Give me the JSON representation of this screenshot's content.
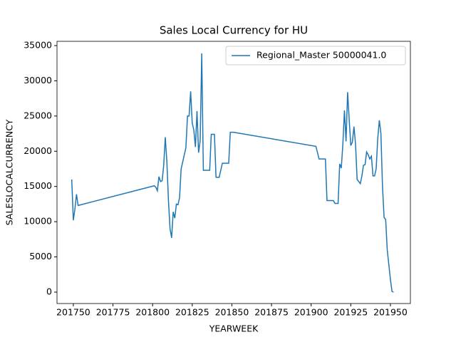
{
  "chart_data": {
    "type": "line",
    "title": "Sales Local Currency for HU",
    "x_label": "YEARWEEK",
    "y_label": "SALESLOCALCURRENCY",
    "x": [
      201749,
      201750,
      201751,
      201752,
      201753,
      201801,
      201802,
      201803,
      201804,
      201805,
      201806,
      201807,
      201808,
      201809,
      201810,
      201811,
      201812,
      201813,
      201814,
      201815,
      201816,
      201817,
      201818,
      201819,
      201820,
      201821,
      201822,
      201823,
      201824,
      201825,
      201826,
      201827,
      201828,
      201829,
      201830,
      201831,
      201832,
      201834,
      201836,
      201837,
      201839,
      201840,
      201842,
      201844,
      201848,
      201849,
      201851,
      201903,
      201905,
      201909,
      201910,
      201914,
      201915,
      201917,
      201918,
      201919,
      201920,
      201921,
      201922,
      201923,
      201924,
      201925,
      201926,
      201927,
      201928,
      201929,
      201930,
      201931,
      201932,
      201933,
      201934,
      201935,
      201936,
      201937,
      201938,
      201939,
      201940,
      201941,
      201942,
      201943,
      201944,
      201945,
      201946,
      201947,
      201948,
      201950,
      201951,
      201952
    ],
    "series": [
      {
        "name": "Regional_Master 50000041.0",
        "color": "#1f77b4",
        "values": [
          16000,
          10200,
          11800,
          13900,
          12300,
          15100,
          14900,
          14400,
          16400,
          15700,
          15800,
          18000,
          22000,
          18500,
          13000,
          9000,
          7700,
          11400,
          10500,
          12500,
          12400,
          13400,
          17500,
          18500,
          19500,
          20500,
          25000,
          25000,
          28500,
          24000,
          23000,
          20600,
          25700,
          19800,
          21500,
          33900,
          17300,
          17300,
          17300,
          22400,
          22400,
          16300,
          16300,
          18300,
          18300,
          22700,
          22700,
          20700,
          18900,
          18900,
          13000,
          13000,
          12600,
          12600,
          18200,
          17600,
          21000,
          25800,
          21400,
          28400,
          24500,
          20800,
          21300,
          23500,
          21000,
          16000,
          15700,
          15400,
          16500,
          18000,
          18100,
          19900,
          19500,
          18900,
          19300,
          16500,
          16500,
          17500,
          21800,
          24400,
          22500,
          15000,
          10600,
          10300,
          6000,
          1800,
          100,
          0
        ]
      }
    ],
    "xlim": [
      201739.7,
      201962.6
    ],
    "ylim": [
      -1618,
      35606
    ],
    "xticks": [
      201750,
      201775,
      201800,
      201825,
      201850,
      201875,
      201900,
      201925,
      201950
    ],
    "yticks": [
      0,
      5000,
      10000,
      15000,
      20000,
      25000,
      30000,
      35000
    ],
    "legend": "upper right"
  }
}
